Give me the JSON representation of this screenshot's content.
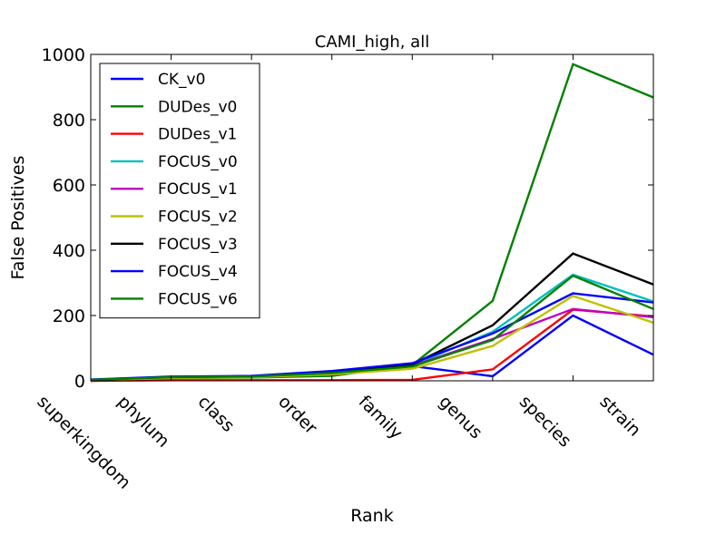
{
  "chart_data": {
    "type": "line",
    "title": "CAMI_high, all",
    "xlabel": "Rank",
    "ylabel": "False Positives",
    "categories": [
      "superkingdom",
      "phylum",
      "class",
      "order",
      "family",
      "genus",
      "species",
      "strain"
    ],
    "ylim": [
      0,
      1000
    ],
    "yticks": [
      0,
      200,
      400,
      600,
      800,
      1000
    ],
    "grid": false,
    "legend_position": "top-left",
    "series": [
      {
        "name": "CK_v0",
        "color": "#0000ff",
        "values": [
          2,
          10,
          12,
          22,
          45,
          14,
          200,
          80
        ]
      },
      {
        "name": "DUDes_v0",
        "color": "#008000",
        "values": [
          0,
          8,
          10,
          15,
          48,
          245,
          970,
          868
        ]
      },
      {
        "name": "DUDes_v1",
        "color": "#ff0000",
        "values": [
          0,
          2,
          2,
          2,
          3,
          35,
          218,
          197
        ]
      },
      {
        "name": "FOCUS_v0",
        "color": "#00bfbf",
        "values": [
          3,
          12,
          14,
          25,
          48,
          150,
          325,
          243
        ]
      },
      {
        "name": "FOCUS_v1",
        "color": "#bf00bf",
        "values": [
          3,
          11,
          13,
          24,
          46,
          128,
          220,
          195
        ]
      },
      {
        "name": "FOCUS_v2",
        "color": "#bfbf00",
        "values": [
          2,
          9,
          11,
          20,
          37,
          107,
          260,
          178
        ]
      },
      {
        "name": "FOCUS_v3",
        "color": "#000000",
        "values": [
          3,
          12,
          14,
          27,
          50,
          170,
          390,
          295
        ]
      },
      {
        "name": "FOCUS_v4",
        "color": "#0000ff",
        "values": [
          4,
          13,
          15,
          30,
          54,
          145,
          268,
          240
        ]
      },
      {
        "name": "FOCUS_v6",
        "color": "#008000",
        "values": [
          3,
          11,
          13,
          24,
          44,
          125,
          322,
          220
        ]
      }
    ]
  }
}
